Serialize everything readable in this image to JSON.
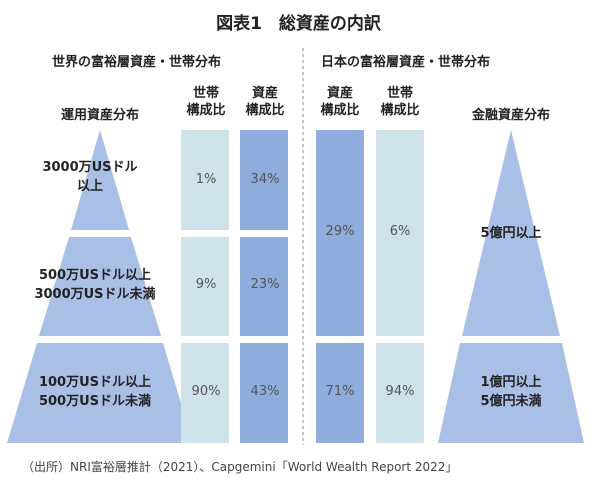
{
  "title": "図表1　総資産の内訳",
  "world": {
    "section_title": "世界の富裕層資産・世帯分布",
    "pyramid_label": "運用資産分布",
    "col_households": [
      "世帯",
      "構成比"
    ],
    "col_assets": [
      "資産",
      "構成比"
    ],
    "tiers": [
      {
        "label": [
          "3000万USドル",
          "以上"
        ],
        "households": "1%",
        "assets": "34%"
      },
      {
        "label": [
          "500万USドル以上",
          "3000万USドル未満"
        ],
        "households": "9%",
        "assets": "23%"
      },
      {
        "label": [
          "100万USドル以上",
          "500万USドル未満"
        ],
        "households": "90%",
        "assets": "43%"
      }
    ]
  },
  "japan": {
    "section_title": "日本の富裕層資産・世帯分布",
    "pyramid_label": "金融資産分布",
    "col_assets": [
      "資産",
      "構成比"
    ],
    "col_households": [
      "世帯",
      "構成比"
    ],
    "tiers": [
      {
        "label": [
          "5億円以上"
        ],
        "assets": "29%",
        "households": "6%"
      },
      {
        "label": [
          "1億円以上",
          "5億円未満"
        ],
        "assets": "71%",
        "households": "94%"
      }
    ]
  },
  "source": "（出所）NRI富裕層推計（2021）、Capgemini「World Wealth Report 2022」",
  "colors": {
    "assets_bar": "#8eacdc",
    "households_bar": "#cde3e9",
    "pyramid": "#a9bfe6",
    "divider": "#888888"
  },
  "chart_data": {
    "type": "table",
    "title": "図表1　総資産の内訳",
    "panels": [
      {
        "name": "世界の富裕層資産・世帯分布",
        "tier_axis": "運用資産分布",
        "tiers": [
          "3000万USドル以上",
          "500万USドル以上3000万USドル未満",
          "100万USドル以上500万USドル未満"
        ],
        "series": [
          {
            "name": "世帯構成比",
            "values": [
              1,
              9,
              90
            ]
          },
          {
            "name": "資産構成比",
            "values": [
              34,
              23,
              43
            ]
          }
        ]
      },
      {
        "name": "日本の富裕層資産・世帯分布",
        "tier_axis": "金融資産分布",
        "tiers": [
          "5億円以上",
          "1億円以上5億円未満"
        ],
        "series": [
          {
            "name": "資産構成比",
            "values": [
              29,
              71
            ]
          },
          {
            "name": "世帯構成比",
            "values": [
              6,
              94
            ]
          }
        ]
      }
    ]
  }
}
